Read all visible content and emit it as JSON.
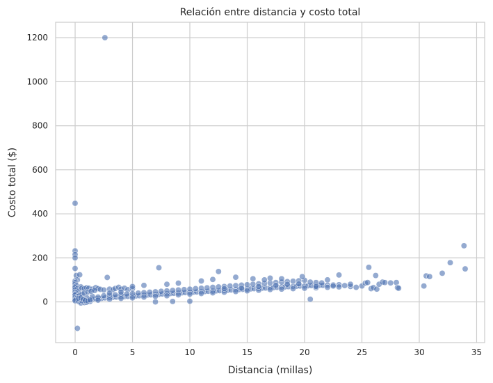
{
  "chart_data": {
    "type": "scatter",
    "title": "Relación entre distancia y costo total",
    "xlabel": "Distancia (millas)",
    "ylabel": "Costo total ($)",
    "xlim": [
      -1.7,
      35.7
    ],
    "ylim": [
      -185,
      1270
    ],
    "xticks": [
      0,
      5,
      10,
      15,
      20,
      25,
      30,
      35
    ],
    "yticks": [
      0,
      200,
      400,
      600,
      800,
      1000,
      1200
    ],
    "grid": true,
    "colors": {
      "marker": "#4c72b0",
      "grid": "#cccccc",
      "frame": "#cccccc",
      "background": "#ffffff"
    },
    "points": [
      [
        2.6,
        1200
      ],
      [
        0.0,
        448
      ],
      [
        0.0,
        232
      ],
      [
        0.0,
        215
      ],
      [
        0.0,
        200
      ],
      [
        0.0,
        152
      ],
      [
        0.1,
        120
      ],
      [
        0.2,
        100
      ],
      [
        0.0,
        95
      ],
      [
        0.0,
        88
      ],
      [
        0.0,
        80
      ],
      [
        0.1,
        75
      ],
      [
        0.0,
        70
      ],
      [
        0.0,
        65
      ],
      [
        0.2,
        60
      ],
      [
        0.0,
        55
      ],
      [
        0.3,
        50
      ],
      [
        0.0,
        45
      ],
      [
        0.1,
        40
      ],
      [
        0.0,
        35
      ],
      [
        0.0,
        30
      ],
      [
        0.2,
        25
      ],
      [
        0.0,
        20
      ],
      [
        0.1,
        15
      ],
      [
        0.0,
        10
      ],
      [
        0.0,
        5
      ],
      [
        0.3,
        2
      ],
      [
        0.2,
        -120
      ],
      [
        0.4,
        123
      ],
      [
        0.5,
        68
      ],
      [
        0.6,
        63
      ],
      [
        0.8,
        60
      ],
      [
        1.0,
        64
      ],
      [
        1.2,
        62
      ],
      [
        1.5,
        58
      ],
      [
        1.8,
        65
      ],
      [
        2.0,
        60
      ],
      [
        2.2,
        57
      ],
      [
        2.5,
        54
      ],
      [
        2.8,
        111
      ],
      [
        3.0,
        58
      ],
      [
        3.3,
        55
      ],
      [
        3.5,
        61
      ],
      [
        3.8,
        66
      ],
      [
        4.0,
        58
      ],
      [
        4.3,
        62
      ],
      [
        4.6,
        56
      ],
      [
        5.0,
        60
      ],
      [
        0.5,
        -5
      ],
      [
        0.8,
        -3
      ],
      [
        1.0,
        -2
      ],
      [
        1.3,
        2
      ],
      [
        0.6,
        5
      ],
      [
        0.9,
        8
      ],
      [
        1.2,
        10
      ],
      [
        1.5,
        12
      ],
      [
        1.8,
        14
      ],
      [
        2.0,
        15
      ],
      [
        2.3,
        16
      ],
      [
        2.6,
        18
      ],
      [
        3.0,
        20
      ],
      [
        3.3,
        21
      ],
      [
        3.6,
        22
      ],
      [
        4.0,
        23
      ],
      [
        4.3,
        24
      ],
      [
        4.6,
        25
      ],
      [
        5.0,
        26
      ],
      [
        5.3,
        27
      ],
      [
        5.6,
        28
      ],
      [
        6.0,
        30
      ],
      [
        6.3,
        31
      ],
      [
        6.6,
        32
      ],
      [
        7.0,
        33
      ],
      [
        7.3,
        34
      ],
      [
        7.6,
        36
      ],
      [
        8.0,
        37
      ],
      [
        8.3,
        38
      ],
      [
        8.6,
        39
      ],
      [
        9.0,
        40
      ],
      [
        9.3,
        41
      ],
      [
        9.6,
        42
      ],
      [
        10.0,
        43
      ],
      [
        10.3,
        44
      ],
      [
        10.6,
        45
      ],
      [
        11.0,
        46
      ],
      [
        11.3,
        47
      ],
      [
        11.6,
        48
      ],
      [
        12.0,
        49
      ],
      [
        12.3,
        50
      ],
      [
        12.6,
        51
      ],
      [
        13.0,
        52
      ],
      [
        13.3,
        53
      ],
      [
        13.6,
        54
      ],
      [
        14.0,
        55
      ],
      [
        14.3,
        56
      ],
      [
        14.6,
        57
      ],
      [
        15.0,
        58
      ],
      [
        15.3,
        59
      ],
      [
        15.6,
        60
      ],
      [
        16.0,
        61
      ],
      [
        16.3,
        62
      ],
      [
        16.6,
        63
      ],
      [
        17.0,
        64
      ],
      [
        17.3,
        65
      ],
      [
        17.6,
        66
      ],
      [
        18.0,
        67
      ],
      [
        18.3,
        68
      ],
      [
        18.6,
        69
      ],
      [
        19.0,
        70
      ],
      [
        19.3,
        71
      ],
      [
        19.6,
        72
      ],
      [
        20.0,
        72
      ],
      [
        20.3,
        73
      ],
      [
        20.6,
        74
      ],
      [
        21.0,
        74
      ],
      [
        21.3,
        75
      ],
      [
        21.6,
        75
      ],
      [
        22.0,
        76
      ],
      [
        22.5,
        77
      ],
      [
        23.0,
        78
      ],
      [
        1.0,
        20
      ],
      [
        1.5,
        25
      ],
      [
        2.0,
        22
      ],
      [
        2.5,
        28
      ],
      [
        3.0,
        30
      ],
      [
        3.5,
        32
      ],
      [
        4.0,
        34
      ],
      [
        4.5,
        36
      ],
      [
        5.0,
        38
      ],
      [
        5.5,
        40
      ],
      [
        6.0,
        42
      ],
      [
        6.5,
        44
      ],
      [
        7.0,
        46
      ],
      [
        7.5,
        48
      ],
      [
        8.0,
        50
      ],
      [
        8.5,
        52
      ],
      [
        9.0,
        54
      ],
      [
        9.5,
        56
      ],
      [
        10.0,
        58
      ],
      [
        10.5,
        60
      ],
      [
        11.0,
        62
      ],
      [
        11.5,
        64
      ],
      [
        12.0,
        66
      ],
      [
        12.5,
        68
      ],
      [
        13.0,
        70
      ],
      [
        13.5,
        72
      ],
      [
        14.0,
        74
      ],
      [
        14.5,
        76
      ],
      [
        15.0,
        78
      ],
      [
        15.5,
        80
      ],
      [
        16.0,
        82
      ],
      [
        16.5,
        84
      ],
      [
        17.0,
        86
      ],
      [
        17.5,
        88
      ],
      [
        18.0,
        90
      ],
      [
        18.5,
        92
      ],
      [
        19.0,
        94
      ],
      [
        19.5,
        96
      ],
      [
        20.0,
        98
      ],
      [
        20.5,
        90
      ],
      [
        21.0,
        88
      ],
      [
        21.5,
        86
      ],
      [
        2.0,
        8
      ],
      [
        3.0,
        12
      ],
      [
        4.0,
        16
      ],
      [
        5.0,
        18
      ],
      [
        6.0,
        22
      ],
      [
        7.0,
        25
      ],
      [
        8.0,
        28
      ],
      [
        9.0,
        32
      ],
      [
        10.0,
        35
      ],
      [
        11.0,
        38
      ],
      [
        12.0,
        41
      ],
      [
        13.0,
        44
      ],
      [
        14.0,
        47
      ],
      [
        15.0,
        50
      ],
      [
        16.0,
        53
      ],
      [
        17.0,
        56
      ],
      [
        18.0,
        58
      ],
      [
        19.0,
        60
      ],
      [
        20.0,
        62
      ],
      [
        21.0,
        64
      ],
      [
        22.0,
        66
      ],
      [
        23.0,
        68
      ],
      [
        24.0,
        70
      ],
      [
        24.5,
        66
      ],
      [
        25.0,
        72
      ],
      [
        25.3,
        85
      ],
      [
        25.5,
        88
      ],
      [
        25.6,
        157
      ],
      [
        25.8,
        60
      ],
      [
        26.0,
        65
      ],
      [
        26.2,
        120
      ],
      [
        26.3,
        58
      ],
      [
        26.5,
        80
      ],
      [
        26.8,
        90
      ],
      [
        27.0,
        88
      ],
      [
        27.5,
        86
      ],
      [
        28.0,
        88
      ],
      [
        28.1,
        65
      ],
      [
        28.2,
        62
      ],
      [
        30.4,
        72
      ],
      [
        30.6,
        118
      ],
      [
        30.9,
        115
      ],
      [
        32.0,
        130
      ],
      [
        32.7,
        178
      ],
      [
        33.9,
        255
      ],
      [
        34.0,
        150
      ],
      [
        7.3,
        155
      ],
      [
        12.5,
        138
      ],
      [
        7.0,
        0
      ],
      [
        8.5,
        2
      ],
      [
        10.0,
        3
      ],
      [
        20.5,
        12
      ],
      [
        17.0,
        108
      ],
      [
        18.0,
        105
      ],
      [
        19.8,
        115
      ],
      [
        22.0,
        100
      ],
      [
        23.0,
        122
      ],
      [
        14.0,
        112
      ],
      [
        15.5,
        105
      ],
      [
        16.5,
        100
      ],
      [
        11.0,
        95
      ],
      [
        12.0,
        102
      ],
      [
        9.0,
        85
      ],
      [
        8.0,
        80
      ],
      [
        6.0,
        75
      ],
      [
        5.0,
        70
      ],
      [
        13.0,
        60
      ],
      [
        14.5,
        62
      ],
      [
        16.0,
        70
      ],
      [
        17.5,
        75
      ],
      [
        18.5,
        80
      ],
      [
        19.5,
        82
      ],
      [
        21.0,
        70
      ],
      [
        22.5,
        72
      ],
      [
        23.5,
        74
      ],
      [
        24.0,
        80
      ],
      [
        3.0,
        40
      ],
      [
        4.0,
        45
      ],
      [
        0.4,
        30
      ],
      [
        0.6,
        35
      ],
      [
        0.8,
        40
      ],
      [
        1.1,
        45
      ],
      [
        1.4,
        48
      ],
      [
        1.7,
        52
      ],
      [
        0.3,
        15
      ],
      [
        0.5,
        18
      ],
      [
        0.7,
        12
      ],
      [
        0.9,
        6
      ],
      [
        1.1,
        4
      ],
      [
        1.3,
        9
      ]
    ]
  }
}
